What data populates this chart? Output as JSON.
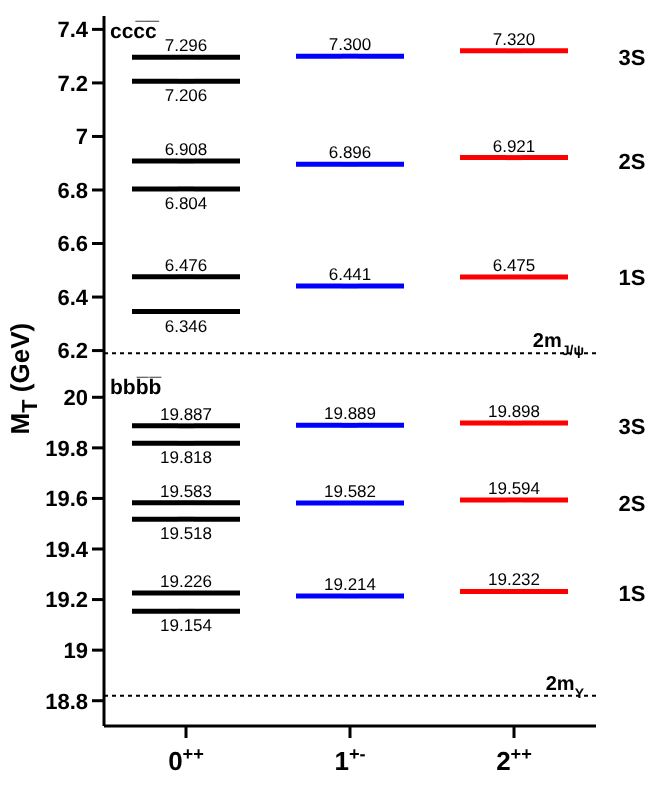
{
  "chart_data": [
    {
      "type": "scatter",
      "title": "ccc̅c̅",
      "ylabel": "M$_{T}$ (GeV)",
      "categories": [
        "0$^{++}$",
        "1$^{+-}$",
        "2$^{++}$"
      ],
      "tick_labels": "y",
      "series": [
        {
          "color": "#000000",
          "x": [
            "0$^{++}$",
            "0$^{++}$",
            "0$^{++}$",
            "0$^{++}$",
            "0$^{++}$",
            "0$^{++}$"
          ],
          "values": [
            7.296,
            7.206,
            6.908,
            6.804,
            6.476,
            6.346
          ],
          "value_labels": [
            "7.296",
            "7.206",
            "6.908",
            "6.804",
            "6.476",
            "6.346"
          ]
        },
        {
          "color": "#0000ff",
          "x": [
            "1$^{+-}$",
            "1$^{+-}$",
            "1$^{+-}$"
          ],
          "values": [
            7.3,
            6.896,
            6.441
          ],
          "value_labels": [
            "7.300",
            "6.896",
            "6.441"
          ]
        },
        {
          "color": "#ff0000",
          "x": [
            "2$^{++}$",
            "2$^{++}$",
            "2$^{++}$"
          ],
          "values": [
            7.32,
            6.921,
            6.475
          ],
          "value_labels": [
            "7.320",
            "6.921",
            "6.475"
          ]
        }
      ],
      "ylim": [
        6.12,
        7.45
      ],
      "yticks": [
        6.2,
        6.4,
        6.6,
        6.8,
        7,
        7.2,
        7.4
      ],
      "ref_lines": [
        {
          "axis": "y",
          "value": 6.19,
          "label": "2m$_{J/ψ}$",
          "line_style": "dotted"
        }
      ],
      "annotations": [
        "3S",
        "2S",
        "1S"
      ],
      "legend": false,
      "grid": false
    },
    {
      "type": "scatter",
      "title": "bbb̅b̅",
      "categories": [
        "0$^{++}$",
        "1$^{+-}$",
        "2$^{++}$"
      ],
      "series": [
        {
          "color": "#000000",
          "x": [
            "0$^{++}$",
            "0$^{++}$",
            "0$^{++}$",
            "0$^{++}$",
            "0$^{++}$",
            "0$^{++}$"
          ],
          "values": [
            19.887,
            19.818,
            19.583,
            19.518,
            19.226,
            19.154
          ]
        },
        {
          "color": "#0000ff",
          "x": [
            "1$^{+-}$",
            "1$^{+-}$",
            "1$^{+-}$"
          ],
          "values": [
            19.889,
            19.582,
            19.214
          ]
        },
        {
          "color": "#ff0000",
          "x": [
            "2$^{++}$",
            "2$^{++}$",
            "2$^{++}$"
          ],
          "values": [
            19.898,
            19.594,
            19.232
          ]
        }
      ],
      "data_labels": true,
      "ylim": [
        18.7,
        20.1
      ],
      "yticks": [
        18.8,
        19,
        19.2,
        19.4,
        19.6,
        19.8,
        20
      ],
      "ref_lines": [
        {
          "axis": "y",
          "value": 18.82,
          "label": "2m$_{Υ}$",
          "line_style": "dotted"
        }
      ],
      "annotations": [
        "3S",
        "2S",
        "1S"
      ],
      "legend": false,
      "grid": false
    }
  ]
}
